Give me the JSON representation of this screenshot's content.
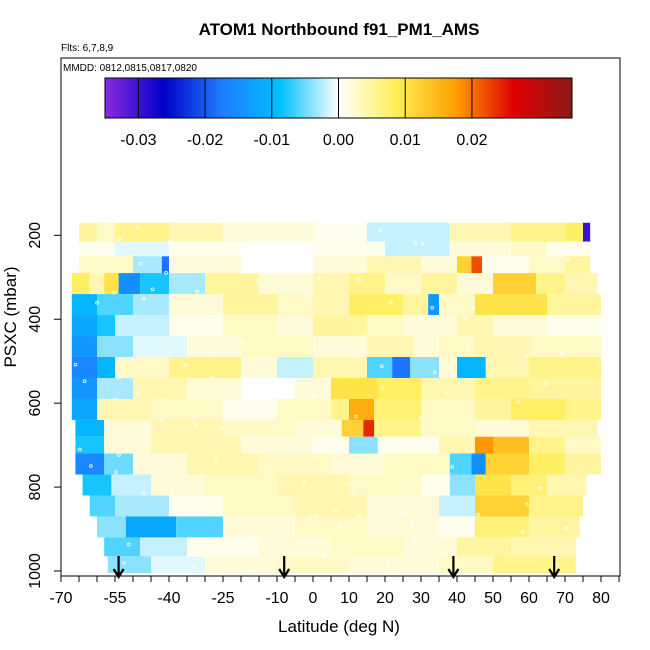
{
  "chart_data": {
    "type": "heatmap",
    "title": "ATOM1 Northbound f91_PM1_AMS",
    "subtitle_flights": "Flts: 6,7,8,9",
    "subtitle_dates": "MMDD: 0812,0815,0817,0820",
    "xlabel": "Latitude (deg N)",
    "ylabel": "PSXC (mbar)",
    "xlim": [
      -70,
      85
    ],
    "ylim": [
      1010,
      100
    ],
    "x_ticks": [
      -70,
      -55,
      -40,
      -25,
      -10,
      0,
      10,
      20,
      30,
      40,
      50,
      60,
      70,
      80
    ],
    "y_ticks": [
      200,
      400,
      600,
      800,
      1000
    ],
    "colorbar": {
      "range": [
        -0.035,
        0.035
      ],
      "ticks": [
        -0.03,
        -0.02,
        -0.01,
        0.0,
        0.01,
        0.02
      ],
      "tick_labels": [
        "-0.03",
        "-0.02",
        "-0.01",
        "0.00",
        "0.01",
        "0.02"
      ],
      "colors": [
        "#8a2be2",
        "#0000c8",
        "#1e7cff",
        "#00c0ff",
        "#ffffff",
        "#ffee55",
        "#ffa000",
        "#e00000",
        "#8b1a1a"
      ]
    },
    "arrows_latitude": [
      -54,
      -8,
      39,
      67
    ],
    "bands": [
      {
        "p_top": 170,
        "p_bot": 215,
        "segments": [
          [
            -65,
            -60,
            0.005
          ],
          [
            -60,
            -55,
            0.003
          ],
          [
            -55,
            -40,
            0.006
          ],
          [
            -40,
            -25,
            0.004
          ],
          [
            -25,
            0,
            0.002
          ],
          [
            0,
            15,
            0.001
          ],
          [
            15,
            38,
            -0.002
          ],
          [
            38,
            55,
            0.004
          ],
          [
            55,
            70,
            0.006
          ],
          [
            70,
            75,
            0.008
          ],
          [
            75,
            77,
            -0.03
          ]
        ]
      },
      {
        "p_top": 215,
        "p_bot": 250,
        "segments": [
          [
            -65,
            -55,
            0.001
          ],
          [
            -55,
            -40,
            -0.001
          ],
          [
            -40,
            -20,
            0.001
          ],
          [
            -20,
            0,
            0.0
          ],
          [
            0,
            20,
            0.001
          ],
          [
            20,
            38,
            -0.002
          ],
          [
            38,
            55,
            0.002
          ],
          [
            55,
            65,
            0.003
          ],
          [
            65,
            77,
            0.001
          ]
        ]
      },
      {
        "p_top": 250,
        "p_bot": 290,
        "segments": [
          [
            -65,
            -50,
            0.003
          ],
          [
            -50,
            -42,
            -0.003
          ],
          [
            -42,
            -40,
            -0.018
          ],
          [
            -40,
            -20,
            0.002
          ],
          [
            -20,
            0,
            0.0
          ],
          [
            0,
            15,
            0.002
          ],
          [
            15,
            30,
            0.004
          ],
          [
            30,
            40,
            0.002
          ],
          [
            40,
            44,
            0.012
          ],
          [
            44,
            47,
            0.022
          ],
          [
            47,
            60,
            0.001
          ],
          [
            60,
            70,
            0.003
          ],
          [
            70,
            77,
            0.005
          ]
        ]
      },
      {
        "p_top": 290,
        "p_bot": 340,
        "segments": [
          [
            -67,
            -62,
            0.008
          ],
          [
            -62,
            -58,
            0.004
          ],
          [
            -58,
            -54,
            0.01
          ],
          [
            -54,
            -48,
            -0.015
          ],
          [
            -48,
            -40,
            -0.008
          ],
          [
            -40,
            -30,
            -0.003
          ],
          [
            -30,
            -15,
            0.005
          ],
          [
            -15,
            0,
            0.002
          ],
          [
            0,
            10,
            0.004
          ],
          [
            10,
            20,
            0.006
          ],
          [
            20,
            30,
            0.003
          ],
          [
            30,
            40,
            0.005
          ],
          [
            40,
            50,
            0.002
          ],
          [
            50,
            62,
            0.012
          ],
          [
            62,
            70,
            0.006
          ],
          [
            70,
            79,
            0.004
          ]
        ]
      },
      {
        "p_top": 340,
        "p_bot": 390,
        "segments": [
          [
            -67,
            -60,
            -0.01
          ],
          [
            -60,
            -50,
            -0.006
          ],
          [
            -50,
            -40,
            -0.003
          ],
          [
            -40,
            -25,
            0.002
          ],
          [
            -25,
            -10,
            0.005
          ],
          [
            -10,
            0,
            0.003
          ],
          [
            0,
            10,
            0.004
          ],
          [
            10,
            25,
            0.008
          ],
          [
            25,
            32,
            0.005
          ],
          [
            32,
            35,
            -0.014
          ],
          [
            35,
            45,
            0.003
          ],
          [
            45,
            65,
            0.01
          ],
          [
            65,
            80,
            0.005
          ]
        ]
      },
      {
        "p_top": 390,
        "p_bot": 440,
        "segments": [
          [
            -67,
            -60,
            -0.012
          ],
          [
            -60,
            -55,
            -0.008
          ],
          [
            -55,
            -40,
            -0.002
          ],
          [
            -40,
            -25,
            0.001
          ],
          [
            -25,
            -10,
            0.003
          ],
          [
            -10,
            0,
            0.002
          ],
          [
            0,
            15,
            0.005
          ],
          [
            15,
            25,
            0.003
          ],
          [
            25,
            40,
            0.002
          ],
          [
            40,
            50,
            0.004
          ],
          [
            50,
            65,
            0.002
          ],
          [
            65,
            80,
            0.001
          ]
        ]
      },
      {
        "p_top": 440,
        "p_bot": 490,
        "segments": [
          [
            -67,
            -60,
            -0.014
          ],
          [
            -60,
            -50,
            -0.004
          ],
          [
            -50,
            -35,
            -0.001
          ],
          [
            -35,
            -20,
            0.002
          ],
          [
            -20,
            0,
            0.003
          ],
          [
            0,
            15,
            0.002
          ],
          [
            15,
            28,
            0.004
          ],
          [
            28,
            35,
            0.002
          ],
          [
            35,
            45,
            0.003
          ],
          [
            45,
            60,
            0.004
          ],
          [
            60,
            80,
            0.003
          ]
        ]
      },
      {
        "p_top": 490,
        "p_bot": 540,
        "segments": [
          [
            -67,
            -60,
            -0.016
          ],
          [
            -60,
            -55,
            -0.01
          ],
          [
            -55,
            -40,
            0.003
          ],
          [
            -40,
            -20,
            0.006
          ],
          [
            -20,
            -10,
            0.002
          ],
          [
            -10,
            0,
            -0.002
          ],
          [
            0,
            15,
            0.004
          ],
          [
            15,
            22,
            -0.006
          ],
          [
            22,
            27,
            -0.018
          ],
          [
            27,
            35,
            -0.004
          ],
          [
            35,
            40,
            0.002
          ],
          [
            40,
            48,
            -0.01
          ],
          [
            48,
            60,
            0.004
          ],
          [
            60,
            80,
            0.006
          ]
        ]
      },
      {
        "p_top": 540,
        "p_bot": 590,
        "segments": [
          [
            -67,
            -60,
            -0.014
          ],
          [
            -60,
            -50,
            -0.003
          ],
          [
            -50,
            -35,
            0.004
          ],
          [
            -35,
            -20,
            0.002
          ],
          [
            -20,
            -5,
            0.0
          ],
          [
            -5,
            5,
            0.002
          ],
          [
            5,
            18,
            0.01
          ],
          [
            18,
            30,
            0.008
          ],
          [
            30,
            45,
            0.004
          ],
          [
            45,
            60,
            0.006
          ],
          [
            60,
            80,
            0.005
          ]
        ]
      },
      {
        "p_top": 590,
        "p_bot": 640,
        "segments": [
          [
            -67,
            -60,
            -0.012
          ],
          [
            -60,
            -45,
            0.004
          ],
          [
            -45,
            -25,
            0.003
          ],
          [
            -25,
            -10,
            0.001
          ],
          [
            -10,
            5,
            0.003
          ],
          [
            5,
            10,
            0.006
          ],
          [
            10,
            17,
            0.016
          ],
          [
            17,
            30,
            0.007
          ],
          [
            30,
            45,
            0.003
          ],
          [
            45,
            55,
            0.005
          ],
          [
            55,
            70,
            0.008
          ],
          [
            70,
            80,
            0.006
          ]
        ]
      },
      {
        "p_top": 640,
        "p_bot": 680,
        "segments": [
          [
            -66,
            -58,
            -0.01
          ],
          [
            -58,
            -45,
            0.002
          ],
          [
            -45,
            -25,
            0.004
          ],
          [
            -25,
            -5,
            0.003
          ],
          [
            -5,
            8,
            0.002
          ],
          [
            8,
            14,
            0.012
          ],
          [
            14,
            17,
            0.024
          ],
          [
            17,
            30,
            0.006
          ],
          [
            30,
            45,
            0.003
          ],
          [
            45,
            60,
            0.002
          ],
          [
            60,
            79,
            0.004
          ]
        ]
      },
      {
        "p_top": 680,
        "p_bot": 720,
        "segments": [
          [
            -66,
            -58,
            -0.008
          ],
          [
            -58,
            -45,
            0.002
          ],
          [
            -45,
            -20,
            0.004
          ],
          [
            -20,
            0,
            0.002
          ],
          [
            0,
            10,
            0.001
          ],
          [
            10,
            18,
            -0.004
          ],
          [
            18,
            35,
            0.001
          ],
          [
            35,
            45,
            0.004
          ],
          [
            45,
            50,
            0.018
          ],
          [
            50,
            60,
            0.014
          ],
          [
            60,
            70,
            0.006
          ],
          [
            70,
            80,
            0.003
          ]
        ]
      },
      {
        "p_top": 720,
        "p_bot": 770,
        "segments": [
          [
            -66,
            -58,
            -0.016
          ],
          [
            -58,
            -50,
            -0.005
          ],
          [
            -50,
            -35,
            0.002
          ],
          [
            -35,
            -15,
            0.004
          ],
          [
            -15,
            5,
            0.003
          ],
          [
            5,
            20,
            0.002
          ],
          [
            20,
            38,
            0.003
          ],
          [
            38,
            44,
            -0.006
          ],
          [
            44,
            48,
            -0.015
          ],
          [
            48,
            60,
            0.012
          ],
          [
            60,
            70,
            0.008
          ],
          [
            70,
            80,
            0.005
          ]
        ]
      },
      {
        "p_top": 770,
        "p_bot": 820,
        "segments": [
          [
            -64,
            -56,
            -0.008
          ],
          [
            -56,
            -45,
            -0.002
          ],
          [
            -45,
            -30,
            0.002
          ],
          [
            -30,
            -10,
            0.003
          ],
          [
            -10,
            10,
            0.004
          ],
          [
            10,
            30,
            0.003
          ],
          [
            30,
            38,
            0.001
          ],
          [
            38,
            45,
            -0.004
          ],
          [
            45,
            55,
            0.01
          ],
          [
            55,
            65,
            0.007
          ],
          [
            65,
            76,
            0.004
          ]
        ]
      },
      {
        "p_top": 820,
        "p_bot": 870,
        "segments": [
          [
            -62,
            -55,
            -0.006
          ],
          [
            -55,
            -40,
            -0.003
          ],
          [
            -40,
            -25,
            0.001
          ],
          [
            -25,
            -5,
            0.003
          ],
          [
            -5,
            15,
            0.004
          ],
          [
            15,
            35,
            0.002
          ],
          [
            35,
            45,
            -0.002
          ],
          [
            45,
            60,
            0.012
          ],
          [
            60,
            75,
            0.006
          ]
        ]
      },
      {
        "p_top": 870,
        "p_bot": 920,
        "segments": [
          [
            -60,
            -52,
            -0.004
          ],
          [
            -52,
            -38,
            -0.012
          ],
          [
            -38,
            -25,
            -0.006
          ],
          [
            -25,
            -5,
            0.002
          ],
          [
            -5,
            15,
            0.003
          ],
          [
            15,
            35,
            0.002
          ],
          [
            35,
            45,
            0.001
          ],
          [
            45,
            60,
            0.007
          ],
          [
            60,
            74,
            0.005
          ]
        ]
      },
      {
        "p_top": 920,
        "p_bot": 965,
        "segments": [
          [
            -58,
            -48,
            -0.006
          ],
          [
            -48,
            -35,
            -0.002
          ],
          [
            -35,
            -15,
            0.001
          ],
          [
            -15,
            5,
            0.002
          ],
          [
            5,
            25,
            0.003
          ],
          [
            25,
            40,
            0.002
          ],
          [
            40,
            55,
            0.005
          ],
          [
            55,
            73,
            0.004
          ]
        ]
      },
      {
        "p_top": 965,
        "p_bot": 1005,
        "segments": [
          [
            -57,
            -45,
            -0.004
          ],
          [
            -45,
            -30,
            -0.001
          ],
          [
            -30,
            -10,
            0.002
          ],
          [
            -10,
            10,
            0.003
          ],
          [
            10,
            35,
            0.002
          ],
          [
            35,
            50,
            0.003
          ],
          [
            50,
            73,
            0.006
          ]
        ]
      }
    ]
  }
}
